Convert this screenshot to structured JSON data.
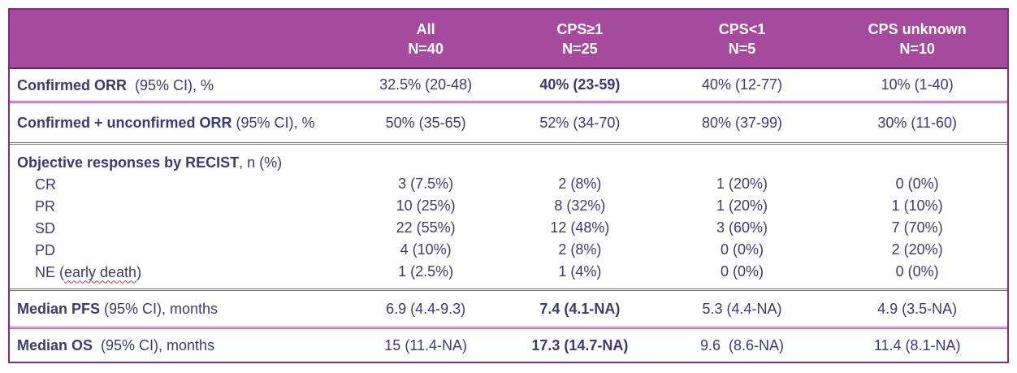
{
  "colors": {
    "header_bg": "#A64A9D",
    "header_text": "#FFFFFF",
    "header_bottom": "#5F2765",
    "border_outer": "#7E2F7A",
    "separator": "#A5549E",
    "text": "#3B3A72",
    "spellcheck": "#C9392E"
  },
  "header": {
    "cols": [
      {
        "line1": "All",
        "line2": "N=40"
      },
      {
        "line1": "CPS≥1",
        "line2": "N=25"
      },
      {
        "line1": "CPS<1",
        "line2": "N=5"
      },
      {
        "line1": "CPS unknown",
        "line2": "N=10"
      }
    ]
  },
  "rows": [
    {
      "label_bold": "Confirmed ORR",
      "label_rest": "  (95% CI), %",
      "values": [
        "32.5% (20-48)",
        "40% (23-59)",
        "40% (12-77)",
        "10% (1-40)"
      ]
    },
    {
      "label_bold": "Confirmed + unconfirmed ORR",
      "label_rest": " (95% CI), %",
      "values": [
        "50% (35-65)",
        "52% (34-70)",
        "80% (37-99)",
        "30% (11-60)"
      ]
    },
    {
      "label_bold": "Objective responses by RECIST",
      "label_rest": ", n (%)",
      "subrows": [
        {
          "label": "CR",
          "values": [
            "3 (7.5%)",
            "2 (8%)",
            "1 (20%)",
            "0 (0%)"
          ]
        },
        {
          "label": "PR",
          "values": [
            "10 (25%)",
            "8 (32%)",
            "1 (20%)",
            "1 (10%)"
          ]
        },
        {
          "label": "SD",
          "values": [
            "22 (55%)",
            "12 (48%)",
            "3 (60%)",
            "7 (70%)"
          ]
        },
        {
          "label": "PD",
          "values": [
            "4 (10%)",
            "2 (8%)",
            "0 (0%)",
            "2 (20%)"
          ]
        },
        {
          "label_pre": "NE (",
          "label_wavy": "early death",
          "label_post": ")",
          "values": [
            "1 (2.5%)",
            "1 (4%)",
            "0 (0%)",
            "0 (0%)"
          ]
        }
      ]
    },
    {
      "label_bold": "Median PFS",
      "label_rest": " (95% CI), months",
      "values": [
        "6.9 (4.4-9.3)",
        "7.4 (4.1-NA)",
        "5.3 (4.4-NA)",
        "4.9 (3.5-NA)"
      ]
    },
    {
      "label_bold": "Median OS",
      "label_rest": "  (95% CI), months",
      "values": [
        "15 (11.4-NA)",
        "17.3 (14.7-NA)",
        "9.6  (8.6-NA)",
        "11.4 (8.1-NA)"
      ]
    }
  ]
}
